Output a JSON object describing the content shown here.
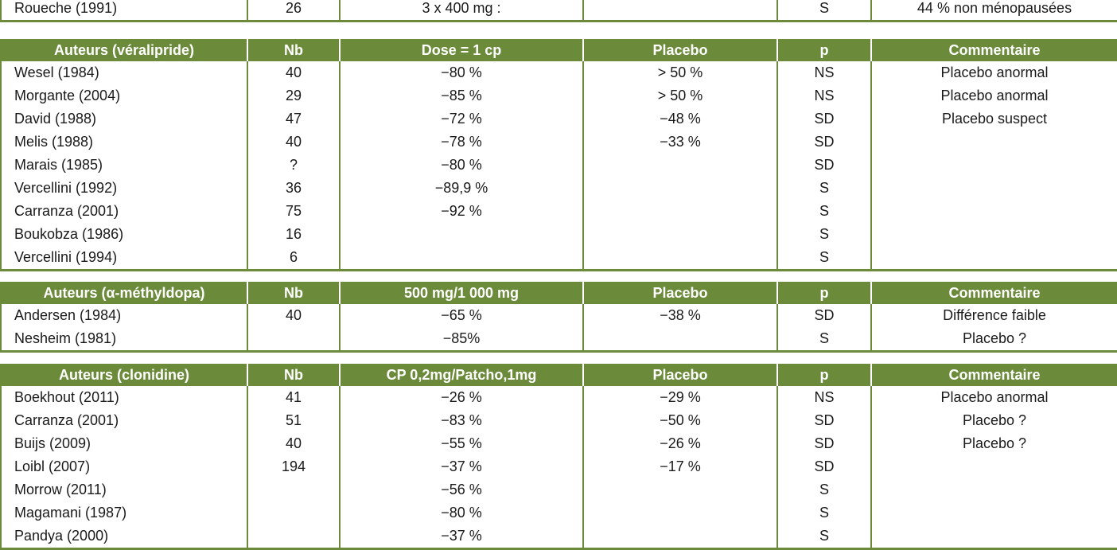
{
  "top_row": {
    "author": "Roueche (1991)",
    "nb": "26",
    "dose": "3 x 400 mg :",
    "placebo": "",
    "p": "S",
    "comment": "44 % non ménopausées"
  },
  "sections": [
    {
      "header": [
        "Auteurs (véralipride)",
        "Nb",
        "Dose = 1 cp",
        "Placebo",
        "p",
        "Commentaire"
      ],
      "rows": [
        [
          "Wesel (1984)",
          "40",
          "−80 %",
          "> 50 %",
          "NS",
          "Placebo anormal"
        ],
        [
          "Morgante (2004)",
          "29",
          "−85 %",
          "> 50 %",
          "NS",
          "Placebo anormal"
        ],
        [
          "David (1988)",
          "47",
          "−72 %",
          "−48 %",
          "SD",
          "Placebo suspect"
        ],
        [
          "Melis (1988)",
          "40",
          "−78 %",
          "−33 %",
          "SD",
          ""
        ],
        [
          "Marais (1985)",
          "?",
          "−80 %",
          "",
          "SD",
          ""
        ],
        [
          "Vercellini (1992)",
          "36",
          "−89,9 %",
          "",
          "S",
          ""
        ],
        [
          "Carranza (2001)",
          "75",
          "−92 %",
          "",
          "S",
          ""
        ],
        [
          "Boukobza (1986)",
          "16",
          "",
          "",
          "S",
          ""
        ],
        [
          "Vercellini (1994)",
          "6",
          "",
          "",
          "S",
          ""
        ]
      ]
    },
    {
      "header": [
        "Auteurs (α-méthyldopa)",
        "Nb",
        "500 mg/1 000 mg",
        "Placebo",
        "p",
        "Commentaire"
      ],
      "rows": [
        [
          "Andersen (1984)",
          "40",
          "−65 %",
          "−38 %",
          "SD",
          "Différence faible"
        ],
        [
          "Nesheim (1981)",
          "",
          "−85%",
          "",
          "S",
          "Placebo ?"
        ]
      ]
    },
    {
      "header": [
        "Auteurs (clonidine)",
        "Nb",
        "CP 0,2mg/Patcho,1mg",
        "Placebo",
        "p",
        "Commentaire"
      ],
      "rows": [
        [
          "Boekhout (2011)",
          "41",
          "−26 %",
          "−29 %",
          "NS",
          "Placebo anormal"
        ],
        [
          "Carranza (2001)",
          "51",
          "−83 %",
          "−50 %",
          "SD",
          "Placebo ?"
        ],
        [
          "Buijs (2009)",
          "40",
          "−55 %",
          "−26 %",
          "SD",
          "Placebo ?"
        ],
        [
          "Loibl (2007)",
          "194",
          "−37 %",
          "−17 %",
          "SD",
          ""
        ],
        [
          "Morrow (2011)",
          "",
          "−56 %",
          "",
          "S",
          ""
        ],
        [
          "Magamani (1987)",
          "",
          "−80 %",
          "",
          "S",
          ""
        ],
        [
          "Pandya (2000)",
          "",
          "−37 %",
          "",
          "S",
          ""
        ]
      ]
    }
  ]
}
